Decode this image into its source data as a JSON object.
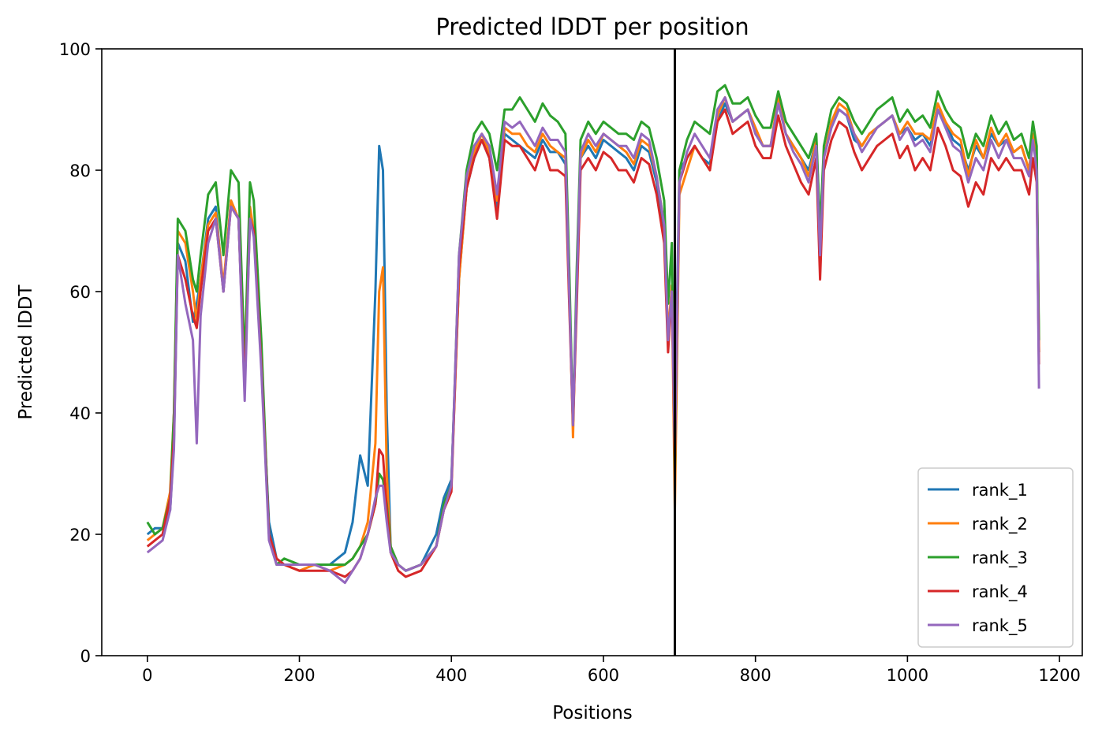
{
  "chart_data": {
    "type": "line",
    "title": "Predicted lDDT per position",
    "xlabel": "Positions",
    "ylabel": "Predicted lDDT",
    "xlim": [
      -60,
      1230
    ],
    "ylim": [
      0,
      100
    ],
    "xticks": [
      0,
      200,
      400,
      600,
      800,
      1000,
      1200
    ],
    "yticks": [
      0,
      20,
      40,
      60,
      80,
      100
    ],
    "xtick_labels": [
      "0",
      "200",
      "400",
      "600",
      "800",
      "1000",
      "1200"
    ],
    "ytick_labels": [
      "0",
      "20",
      "40",
      "60",
      "80",
      "100"
    ],
    "grid": false,
    "legend_position": "lower right",
    "vertical_line_x": 694,
    "vertical_line_color": "#000000",
    "x": [
      0,
      10,
      20,
      30,
      35,
      40,
      50,
      60,
      65,
      70,
      80,
      90,
      100,
      110,
      120,
      128,
      135,
      140,
      150,
      160,
      170,
      180,
      200,
      220,
      240,
      260,
      270,
      280,
      290,
      300,
      305,
      310,
      315,
      320,
      330,
      340,
      360,
      380,
      390,
      400,
      410,
      420,
      430,
      440,
      450,
      460,
      470,
      480,
      490,
      500,
      510,
      520,
      530,
      540,
      550,
      555,
      560,
      565,
      570,
      580,
      590,
      600,
      610,
      620,
      630,
      640,
      650,
      660,
      670,
      680,
      685,
      690,
      694,
      700,
      710,
      720,
      730,
      740,
      750,
      760,
      770,
      780,
      790,
      800,
      810,
      820,
      830,
      840,
      850,
      860,
      870,
      880,
      885,
      890,
      900,
      910,
      920,
      930,
      940,
      950,
      960,
      970,
      980,
      990,
      1000,
      1010,
      1020,
      1030,
      1040,
      1050,
      1060,
      1070,
      1080,
      1090,
      1100,
      1110,
      1120,
      1130,
      1140,
      1150,
      1160,
      1165,
      1170,
      1173
    ],
    "series": [
      {
        "name": "rank_1",
        "color": "#1f77b4",
        "values": [
          20,
          21,
          21,
          24,
          35,
          68,
          65,
          55,
          58,
          62,
          72,
          74,
          60,
          75,
          72,
          45,
          73,
          70,
          48,
          22,
          16,
          15,
          15,
          15,
          15,
          17,
          22,
          33,
          28,
          60,
          84,
          80,
          40,
          18,
          15,
          14,
          15,
          20,
          26,
          29,
          62,
          77,
          82,
          85,
          82,
          74,
          86,
          85,
          84,
          83,
          82,
          85,
          83,
          83,
          81,
          60,
          38,
          60,
          82,
          84,
          82,
          85,
          84,
          83,
          82,
          80,
          84,
          83,
          78,
          70,
          52,
          60,
          38,
          80,
          82,
          84,
          82,
          81,
          88,
          91,
          88,
          89,
          90,
          86,
          84,
          84,
          91,
          86,
          84,
          82,
          80,
          85,
          70,
          82,
          88,
          90,
          89,
          85,
          84,
          86,
          87,
          88,
          89,
          86,
          87,
          85,
          86,
          84,
          90,
          88,
          85,
          84,
          80,
          84,
          82,
          86,
          84,
          85,
          83,
          84,
          80,
          86,
          82,
          50
        ]
      },
      {
        "name": "rank_2",
        "color": "#ff7f0e",
        "values": [
          19,
          20,
          21,
          27,
          40,
          70,
          68,
          60,
          55,
          62,
          71,
          73,
          61,
          75,
          72,
          46,
          74,
          70,
          50,
          20,
          16,
          15,
          14,
          15,
          14,
          15,
          16,
          18,
          22,
          35,
          60,
          64,
          30,
          18,
          15,
          14,
          15,
          18,
          24,
          28,
          62,
          77,
          83,
          86,
          83,
          75,
          87,
          86,
          86,
          84,
          83,
          86,
          84,
          83,
          82,
          62,
          36,
          62,
          82,
          85,
          83,
          86,
          85,
          84,
          83,
          81,
          85,
          84,
          79,
          71,
          53,
          61,
          24,
          76,
          80,
          84,
          82,
          80,
          89,
          92,
          88,
          89,
          90,
          87,
          84,
          84,
          92,
          86,
          84,
          82,
          79,
          85,
          68,
          82,
          88,
          91,
          90,
          86,
          84,
          86,
          87,
          88,
          89,
          86,
          88,
          86,
          86,
          85,
          91,
          88,
          86,
          85,
          79,
          85,
          82,
          87,
          84,
          86,
          83,
          84,
          80,
          86,
          82,
          50
        ]
      },
      {
        "name": "rank_3",
        "color": "#2ca02c",
        "values": [
          22,
          20,
          21,
          26,
          40,
          72,
          70,
          62,
          60,
          66,
          76,
          78,
          66,
          80,
          78,
          48,
          78,
          75,
          52,
          20,
          15,
          16,
          15,
          15,
          15,
          15,
          16,
          18,
          20,
          25,
          30,
          29,
          25,
          18,
          15,
          14,
          15,
          18,
          25,
          28,
          66,
          80,
          86,
          88,
          86,
          80,
          90,
          90,
          92,
          90,
          88,
          91,
          89,
          88,
          86,
          64,
          38,
          64,
          85,
          88,
          86,
          88,
          87,
          86,
          86,
          85,
          88,
          87,
          82,
          75,
          58,
          68,
          30,
          80,
          85,
          88,
          87,
          86,
          93,
          94,
          91,
          91,
          92,
          89,
          87,
          87,
          93,
          88,
          86,
          84,
          82,
          86,
          70,
          84,
          90,
          92,
          91,
          88,
          86,
          88,
          90,
          91,
          92,
          88,
          90,
          88,
          89,
          87,
          93,
          90,
          88,
          87,
          82,
          86,
          84,
          89,
          86,
          88,
          85,
          86,
          82,
          88,
          84,
          52
        ]
      },
      {
        "name": "rank_4",
        "color": "#d62728",
        "values": [
          18,
          19,
          20,
          26,
          36,
          66,
          62,
          56,
          54,
          60,
          70,
          72,
          60,
          74,
          72,
          44,
          72,
          70,
          48,
          20,
          16,
          15,
          14,
          14,
          14,
          13,
          14,
          16,
          20,
          25,
          34,
          33,
          24,
          17,
          14,
          13,
          14,
          18,
          24,
          27,
          64,
          77,
          82,
          85,
          82,
          72,
          85,
          84,
          84,
          82,
          80,
          84,
          80,
          80,
          79,
          58,
          38,
          58,
          80,
          82,
          80,
          83,
          82,
          80,
          80,
          78,
          82,
          81,
          76,
          68,
          50,
          60,
          32,
          78,
          82,
          84,
          82,
          80,
          88,
          90,
          86,
          87,
          88,
          84,
          82,
          82,
          89,
          84,
          81,
          78,
          76,
          82,
          62,
          80,
          85,
          88,
          87,
          83,
          80,
          82,
          84,
          85,
          86,
          82,
          84,
          80,
          82,
          80,
          87,
          84,
          80,
          79,
          74,
          78,
          76,
          82,
          80,
          82,
          80,
          80,
          76,
          82,
          78,
          48
        ]
      },
      {
        "name": "rank_5",
        "color": "#9467bd",
        "values": [
          17,
          18,
          19,
          24,
          34,
          66,
          58,
          52,
          35,
          56,
          68,
          72,
          60,
          74,
          72,
          42,
          72,
          69,
          47,
          19,
          15,
          15,
          15,
          15,
          14,
          12,
          14,
          16,
          20,
          26,
          28,
          28,
          22,
          17,
          15,
          14,
          15,
          18,
          24,
          28,
          66,
          79,
          84,
          86,
          84,
          76,
          88,
          87,
          88,
          86,
          84,
          87,
          85,
          85,
          83,
          60,
          38,
          61,
          83,
          86,
          84,
          86,
          85,
          84,
          84,
          82,
          86,
          85,
          79,
          71,
          52,
          60,
          34,
          78,
          83,
          86,
          84,
          82,
          90,
          92,
          88,
          89,
          90,
          86,
          84,
          84,
          91,
          86,
          83,
          81,
          78,
          84,
          66,
          82,
          87,
          90,
          89,
          86,
          83,
          85,
          87,
          88,
          89,
          85,
          87,
          84,
          85,
          83,
          90,
          87,
          84,
          83,
          78,
          82,
          80,
          85,
          82,
          85,
          82,
          82,
          79,
          85,
          80,
          44
        ]
      }
    ]
  }
}
